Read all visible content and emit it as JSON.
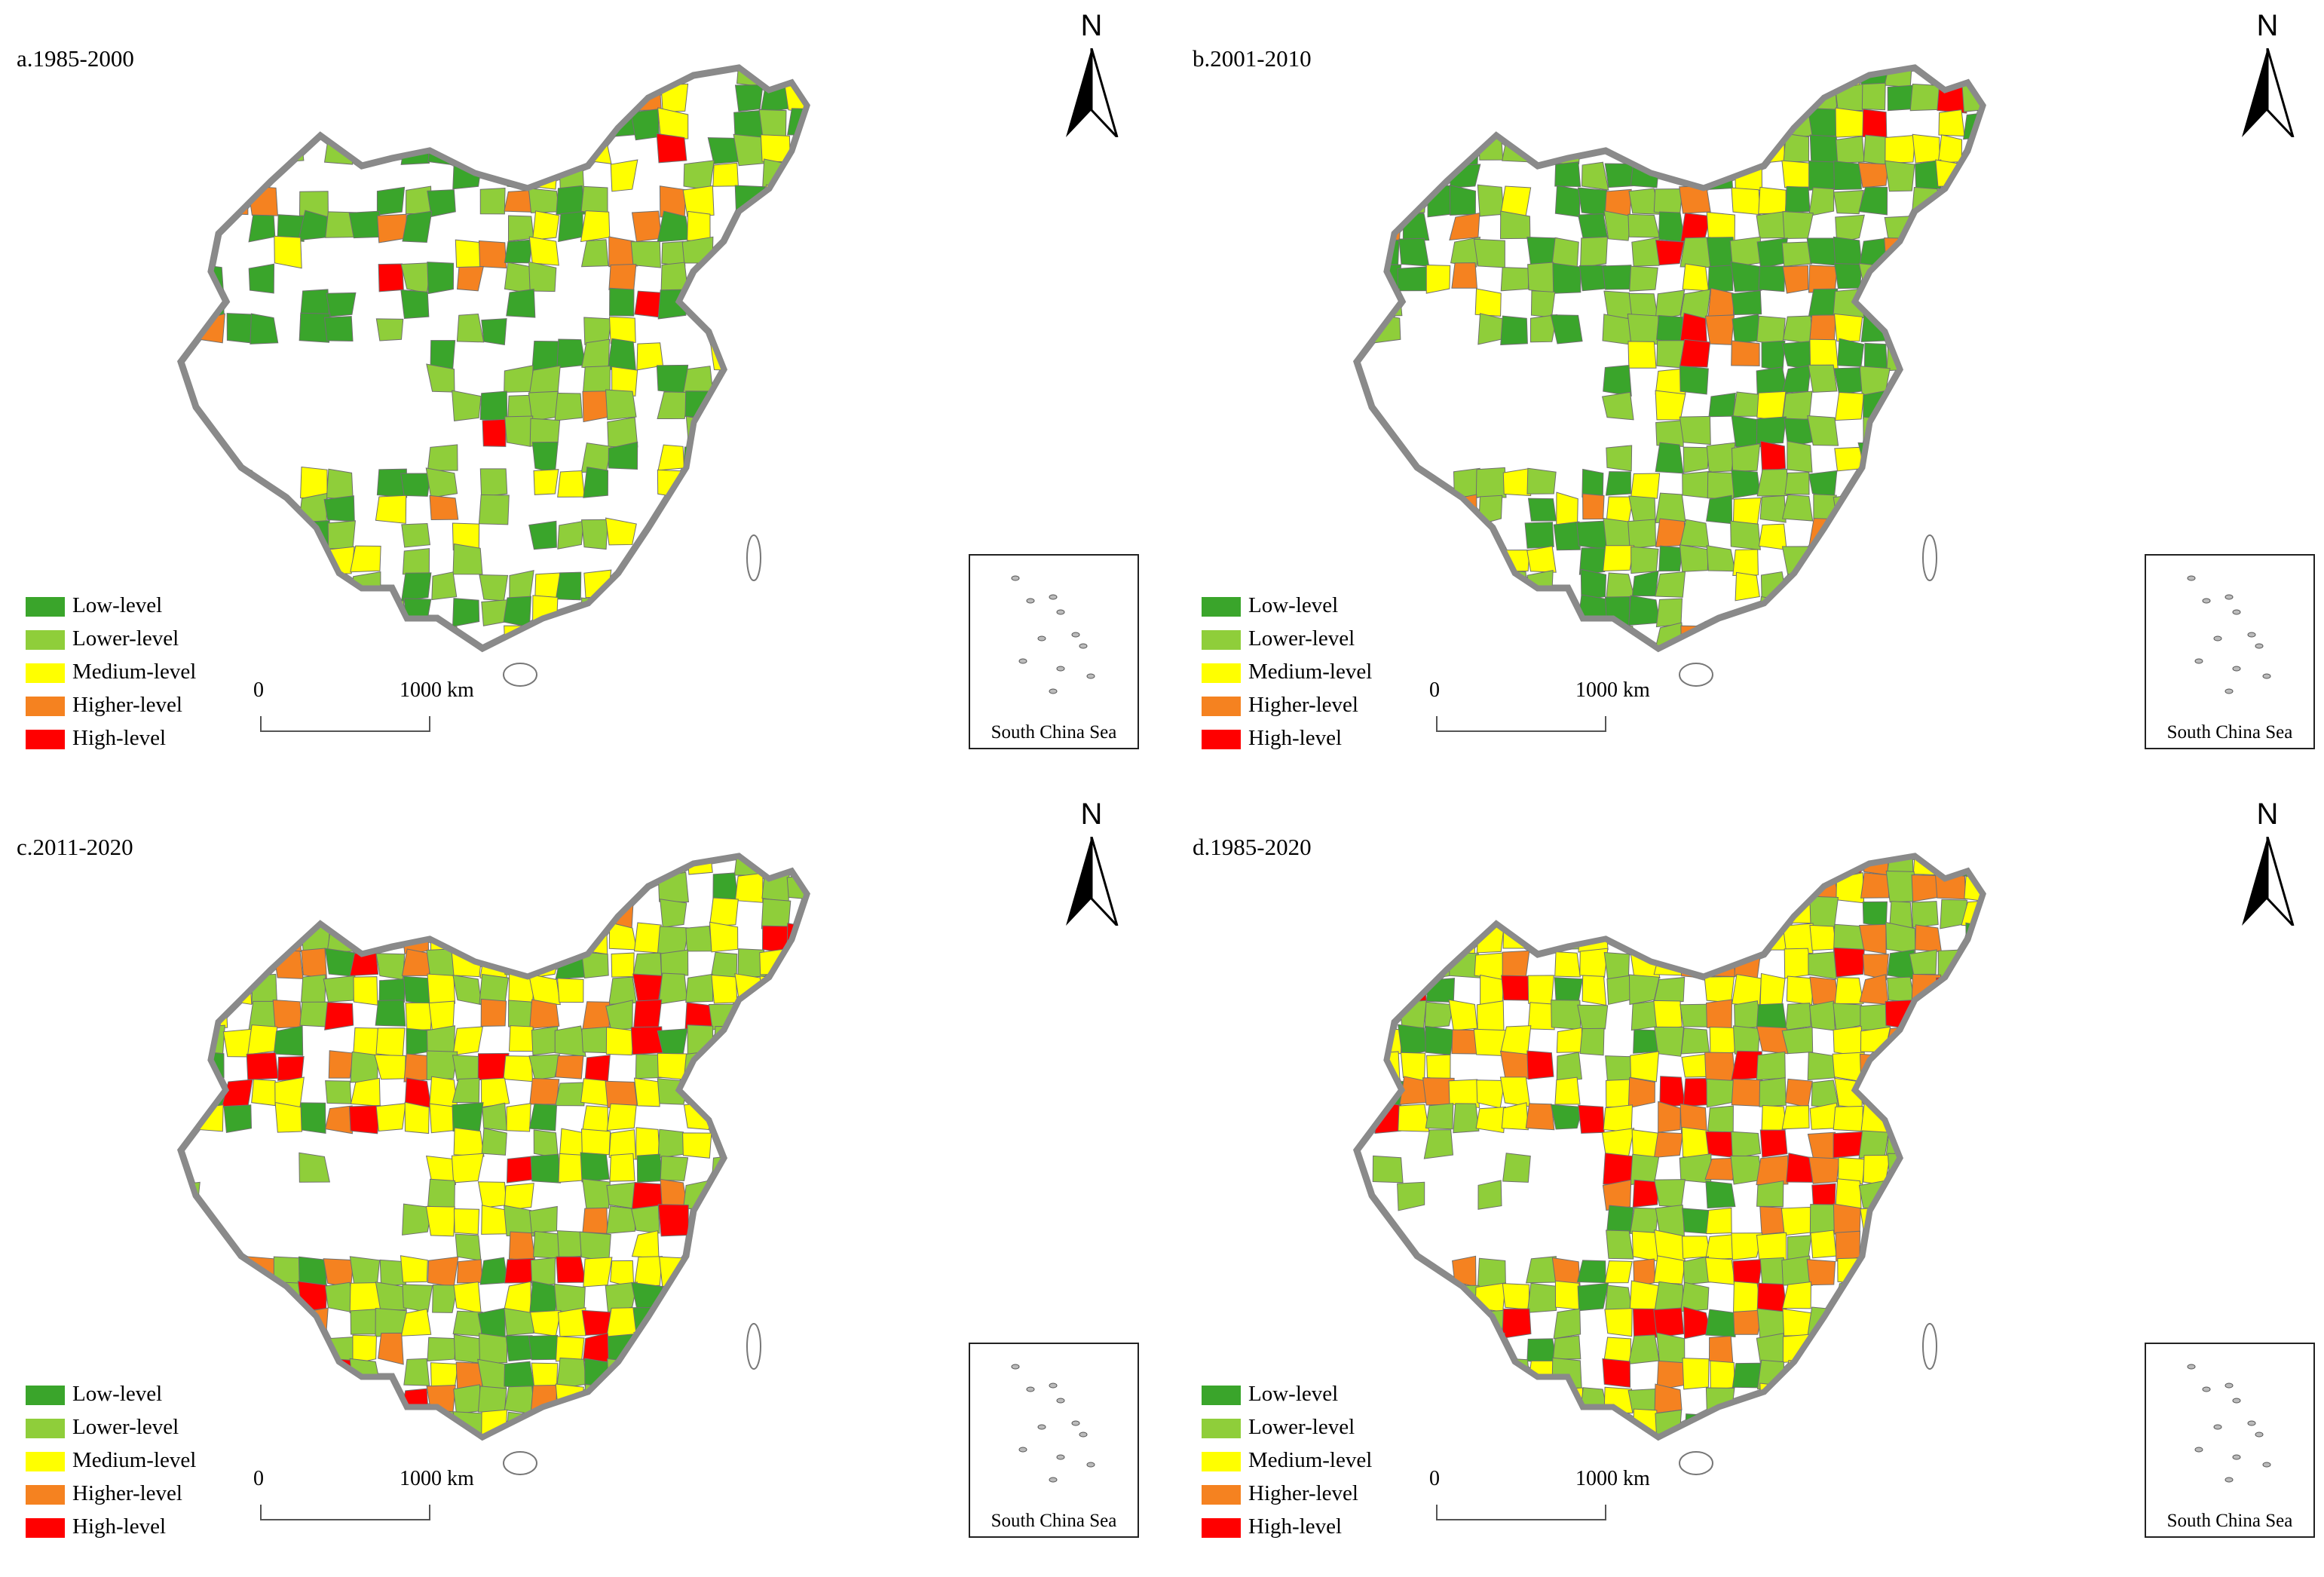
{
  "panels": [
    {
      "title": "a.1985-2000"
    },
    {
      "title": "b.2001-2010"
    },
    {
      "title": "c.2011-2020"
    },
    {
      "title": "d.1985-2020"
    }
  ],
  "north_label": "N",
  "legend": [
    {
      "label": "Low-level",
      "color": "#3aa52b"
    },
    {
      "label": "Lower-level",
      "color": "#8fce3a"
    },
    {
      "label": "Medium-level",
      "color": "#ffff00"
    },
    {
      "label": "Higher-level",
      "color": "#f58220"
    },
    {
      "label": "High-level",
      "color": "#ff0000"
    }
  ],
  "scale": {
    "zero": "0",
    "end": "1000 km"
  },
  "inset_label": "South China Sea"
}
